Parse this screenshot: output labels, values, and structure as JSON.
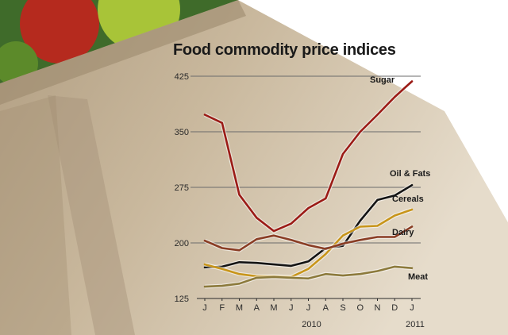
{
  "chart_data": {
    "type": "line",
    "title": "Food commodity price indices",
    "xlabel": "",
    "ylabel": "",
    "categories": [
      "J",
      "F",
      "M",
      "A",
      "M",
      "J",
      "J",
      "A",
      "S",
      "O",
      "N",
      "D",
      "J"
    ],
    "year_labels": [
      {
        "label": "2010",
        "at_index": 6
      },
      {
        "label": "2011",
        "at_index": 12
      }
    ],
    "yticks": [
      125,
      200,
      275,
      350,
      425
    ],
    "ylim": [
      125,
      425
    ],
    "grid": true,
    "series": [
      {
        "name": "Sugar",
        "color": "#9b1b16",
        "values": [
          373,
          362,
          265,
          234,
          216,
          226,
          247,
          260,
          320,
          350,
          373,
          397,
          418
        ]
      },
      {
        "name": "Oil & Fats",
        "color": "#141414",
        "values": [
          167,
          168,
          174,
          173,
          171,
          169,
          175,
          193,
          196,
          230,
          258,
          264,
          278
        ]
      },
      {
        "name": "Cereals",
        "color": "#c8951a",
        "values": [
          171,
          165,
          158,
          155,
          155,
          154,
          165,
          185,
          210,
          222,
          223,
          237,
          245
        ]
      },
      {
        "name": "Dairy",
        "color": "#8a3d24",
        "values": [
          203,
          193,
          190,
          205,
          210,
          204,
          197,
          192,
          199,
          204,
          208,
          208,
          222
        ]
      },
      {
        "name": "Meat",
        "color": "#8c7a3c",
        "values": [
          141,
          142,
          145,
          153,
          154,
          153,
          152,
          158,
          156,
          158,
          162,
          168,
          166
        ]
      }
    ]
  }
}
